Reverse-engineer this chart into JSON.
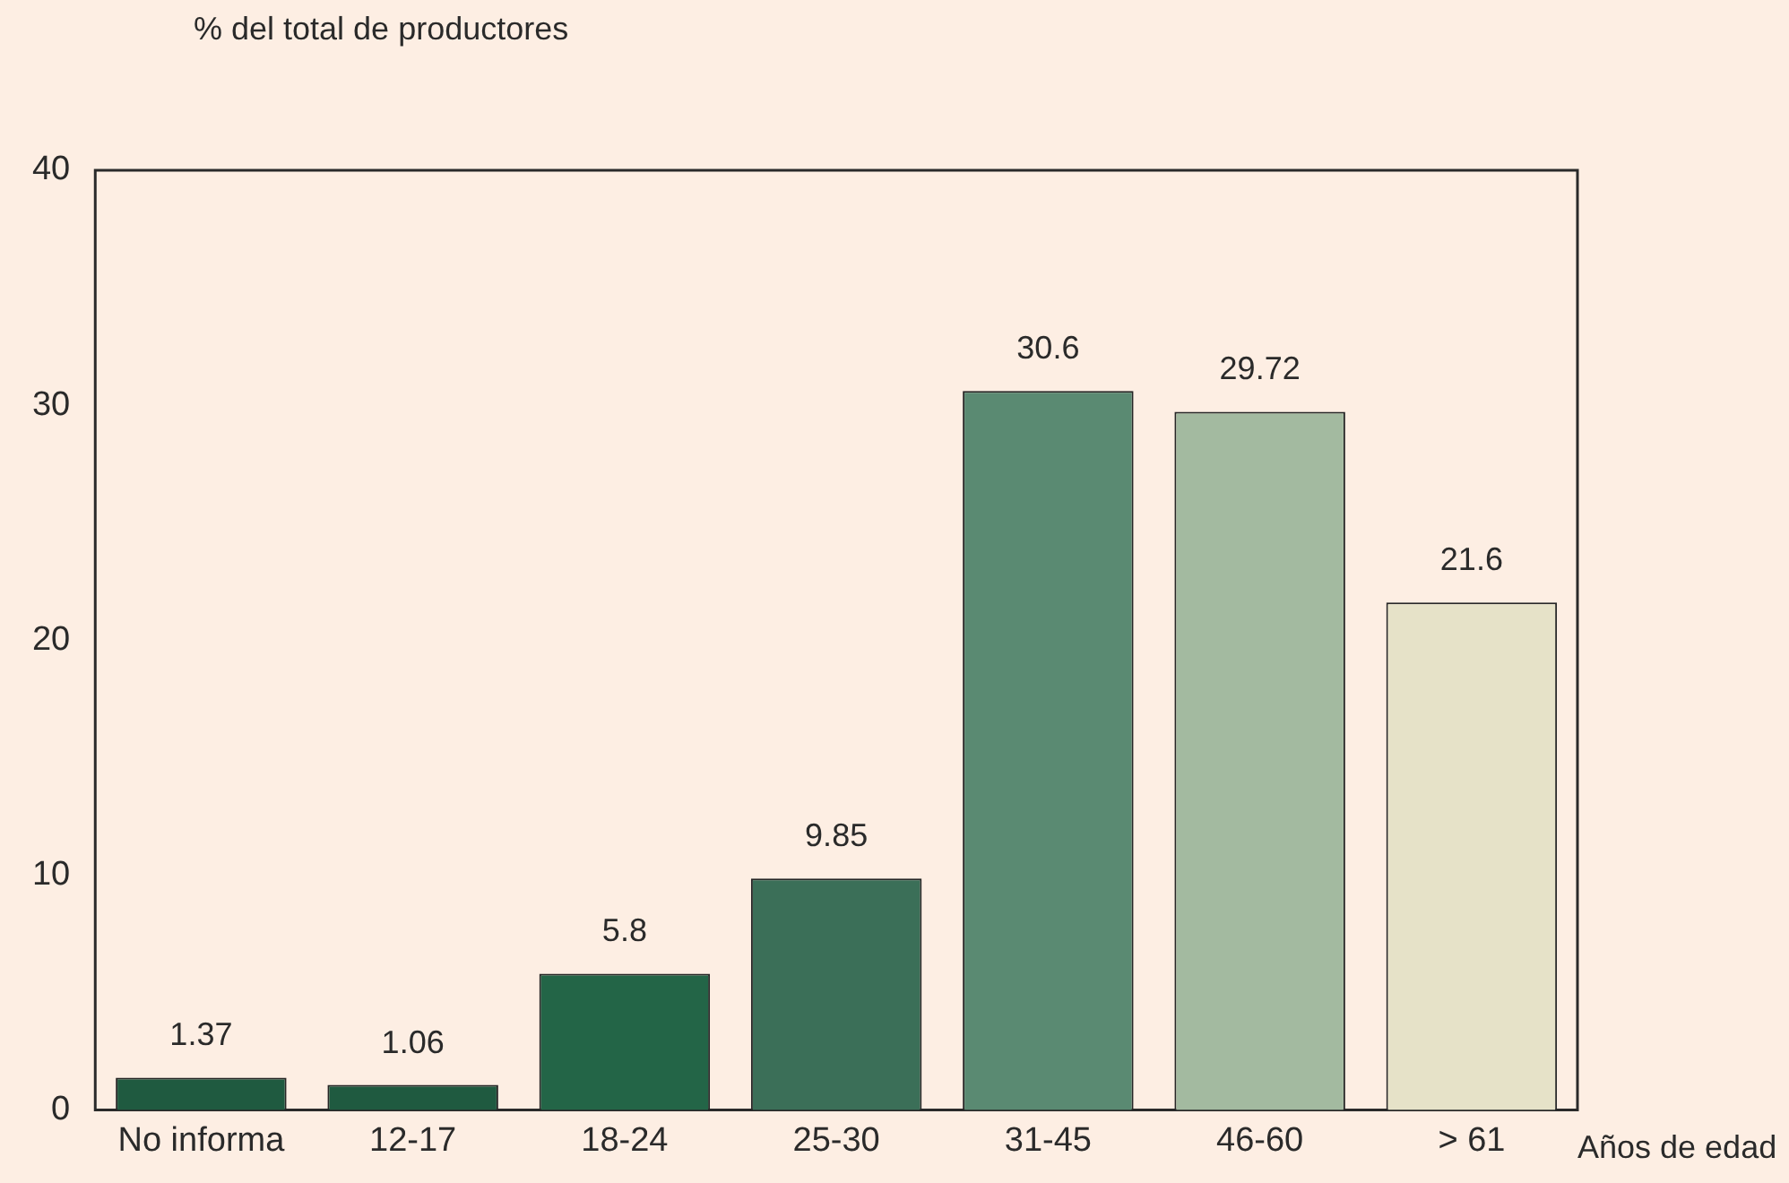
{
  "chart_data": {
    "type": "bar",
    "ylabel": "% del total de productores",
    "xlabel": "Años de edad",
    "categories": [
      "No informa",
      "12-17",
      "18-24",
      "25-30",
      "31-45",
      "46-60",
      "> 61"
    ],
    "values": [
      1.37,
      1.06,
      5.8,
      9.85,
      30.6,
      29.72,
      21.6
    ],
    "colors": [
      "#1f5a40",
      "#1f5a40",
      "#236547",
      "#3b6f58",
      "#5a8a72",
      "#a3baa0",
      "#e6e2c8"
    ],
    "ylim": [
      0,
      40
    ],
    "yticks": [
      0,
      10,
      20,
      30,
      40
    ],
    "grid": false,
    "legend": false,
    "data_labels": true
  }
}
